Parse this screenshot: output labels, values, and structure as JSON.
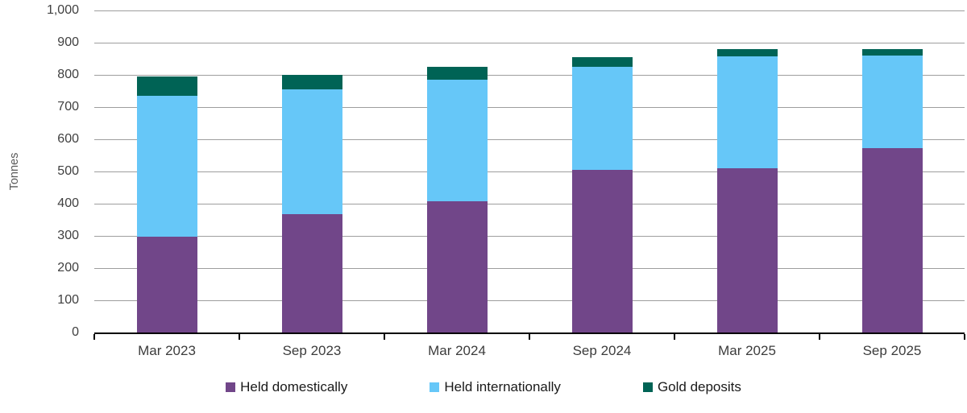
{
  "chart_data": {
    "type": "bar",
    "stacked": true,
    "title": "",
    "ylabel": "Tonnes",
    "xlabel": "",
    "ylim": [
      0,
      1000
    ],
    "ytick_step": 100,
    "ytick_labels": [
      "0",
      "100",
      "200",
      "300",
      "400",
      "500",
      "600",
      "700",
      "800",
      "900",
      "1,000"
    ],
    "grid": true,
    "legend_position": "bottom",
    "categories": [
      "Mar 2023",
      "Sep 2023",
      "Mar 2024",
      "Sep 2024",
      "Mar 2025",
      "Sep 2025"
    ],
    "series": [
      {
        "name": "Held domestically",
        "color": "#714689",
        "values": [
          297,
          368,
          407,
          506,
          509,
          573
        ]
      },
      {
        "name": "Held internationally",
        "color": "#66C7F8",
        "values": [
          437,
          387,
          379,
          319,
          349,
          287
        ]
      },
      {
        "name": "Gold deposits",
        "color": "#006355",
        "values": [
          61,
          46,
          39,
          31,
          22,
          20
        ]
      }
    ],
    "totals": [
      795,
      801,
      825,
      856,
      880,
      880
    ],
    "colors": {
      "gridline": "#9e9e9e",
      "axis": "#000000",
      "tick_label": "#404040",
      "category_label": "#3c3c3c",
      "legend_text": "#1a1a1a"
    }
  }
}
